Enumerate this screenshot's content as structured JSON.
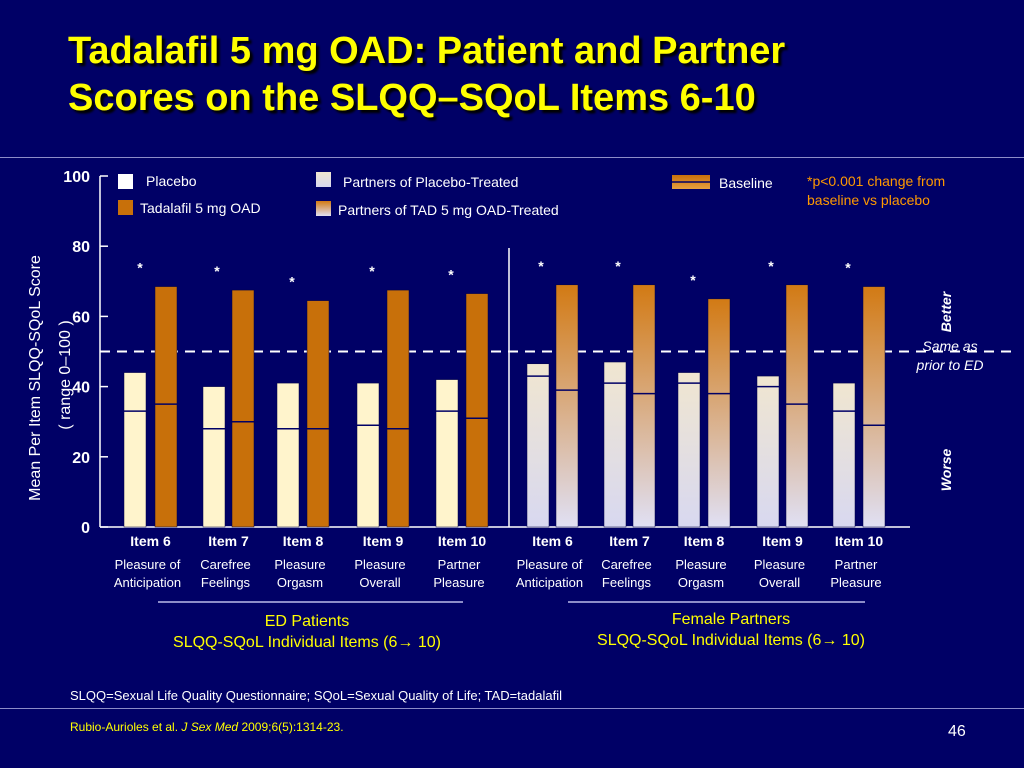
{
  "slide": {
    "title_line1": "Tadalafil 5 mg OAD: Patient and Partner",
    "title_line2": "Scores on the SLQQ–SQoL Items 6-10",
    "footnote": "SLQQ=Sexual Life Quality Questionnaire; SQoL=Sexual Quality of Life; TAD=tadalafil",
    "citation_authors": "Rubio-Aurioles et al.",
    "citation_journal": "J Sex Med",
    "citation_rest": "2009;6(5):1314-23.",
    "page_number": "46"
  },
  "legend": {
    "placebo": "Placebo",
    "tadalafil": "Tadalafil 5 mg OAD",
    "partner_placebo": "Partners of Placebo-Treated",
    "partner_tad": "Partners of TAD 5 mg OAD-Treated",
    "baseline": "Baseline",
    "significance_line1": "*p<0.001 change from",
    "significance_line2": "baseline vs placebo"
  },
  "side_labels": {
    "better": "Better",
    "worse": "Worse",
    "same_line1": "Same as",
    "same_line2": "prior  to ED"
  },
  "groups": {
    "ed_line1": "ED Patients",
    "ed_line2": "SLQQ-SQoL  Individual  Items (6→ 10)",
    "fp_line1": "Female Partners",
    "fp_line2": "SLQQ-SQoL  Individual  Items (6→ 10)"
  },
  "colors": {
    "placebo": "#fff4cc",
    "tadalafil": "#c8700a",
    "partner_placebo_top": "#f0e6d0",
    "partner_placebo_bottom": "#d8d8f0",
    "partner_tad_top": "#d27a14",
    "partner_tad_bottom": "#e0e0f4",
    "significance": "#ff9900",
    "caption": "#ffff00"
  },
  "chart_data": {
    "type": "bar",
    "ylabel_line1": "Mean  Per   Item  SLQQ-SQoL Score",
    "ylabel_line2": "( range  0–100 )",
    "ylim": [
      0,
      100
    ],
    "yticks": [
      0,
      20,
      40,
      60,
      80,
      100
    ],
    "reference_line": 50,
    "categories": [
      "Item 6",
      "Item 7",
      "Item 8",
      "Item 9",
      "Item 10",
      "Item 6",
      "Item 7",
      "Item 8",
      "Item 9",
      "Item 10"
    ],
    "item_descriptions": [
      [
        "Pleasure  of",
        "Anticipation"
      ],
      [
        "Carefree",
        "Feelings"
      ],
      [
        "Pleasure",
        "Orgasm"
      ],
      [
        "Pleasure",
        "Overall"
      ],
      [
        "Partner",
        "Pleasure"
      ],
      [
        "Pleasure of",
        "Anticipation"
      ],
      [
        "Carefree",
        "Feelings"
      ],
      [
        "Pleasure",
        "Orgasm"
      ],
      [
        "Pleasure",
        "Overall"
      ],
      [
        "Partner",
        "Pleasure"
      ]
    ],
    "series": [
      {
        "name": "Placebo",
        "values": [
          44,
          40,
          41,
          41,
          42,
          null,
          null,
          null,
          null,
          null
        ],
        "baseline": [
          33,
          28,
          28,
          29,
          33,
          null,
          null,
          null,
          null,
          null
        ]
      },
      {
        "name": "Tadalafil 5 mg OAD",
        "values": [
          68.5,
          67.5,
          64.5,
          67.5,
          66.5,
          null,
          null,
          null,
          null,
          null
        ],
        "baseline": [
          35,
          30,
          28,
          28,
          31,
          null,
          null,
          null,
          null,
          null
        ],
        "significant": [
          true,
          true,
          true,
          true,
          true,
          null,
          null,
          null,
          null,
          null
        ]
      },
      {
        "name": "Partners of Placebo-Treated",
        "values": [
          null,
          null,
          null,
          null,
          null,
          46.5,
          47,
          44,
          43,
          41
        ],
        "baseline": [
          null,
          null,
          null,
          null,
          null,
          43,
          41,
          41,
          40,
          33
        ]
      },
      {
        "name": "Partners of TAD 5 mg OAD-Treated",
        "values": [
          null,
          null,
          null,
          null,
          null,
          69,
          69,
          65,
          69,
          68.5
        ],
        "baseline": [
          null,
          null,
          null,
          null,
          null,
          39,
          38,
          38,
          35,
          29
        ],
        "significant": [
          null,
          null,
          null,
          null,
          null,
          true,
          true,
          true,
          true,
          true
        ]
      }
    ],
    "significance_marker": "*",
    "legend_position": "top"
  }
}
